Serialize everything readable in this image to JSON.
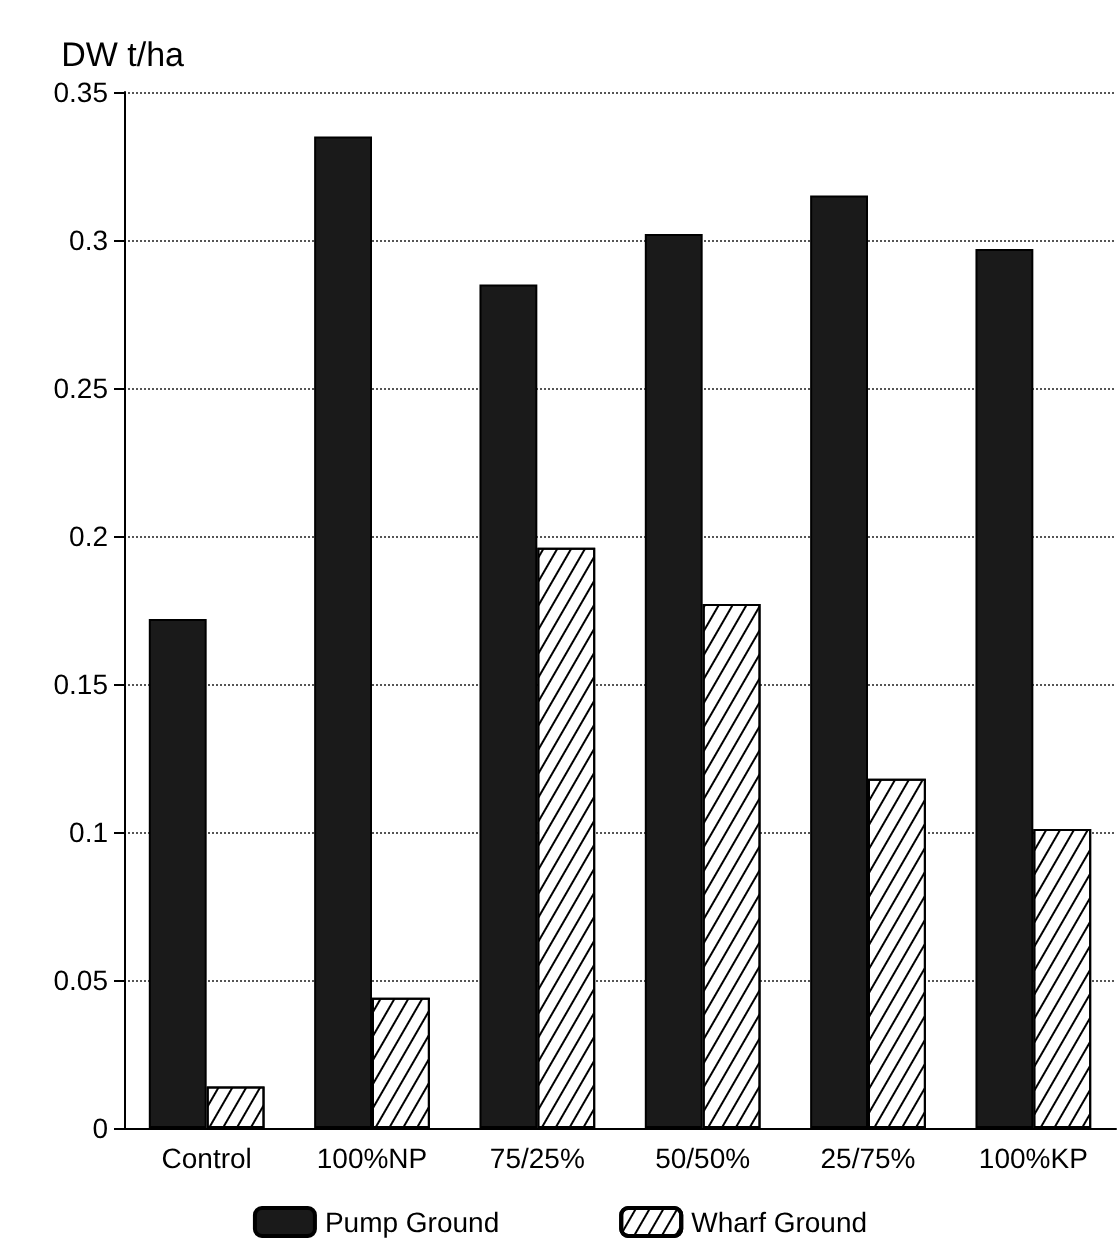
{
  "chart_data": {
    "type": "bar",
    "ylabel": "DW t/ha",
    "categories": [
      "Control",
      "100%NP",
      "75/25%",
      "50/50%",
      "25/75%",
      "100%KP"
    ],
    "series": [
      {
        "name": "Pump Ground",
        "color": "#1a1a1a",
        "values": [
          0.172,
          0.335,
          0.285,
          0.302,
          0.315,
          0.297
        ]
      },
      {
        "name": "Wharf Ground",
        "color": "#ffffff",
        "values": [
          0.014,
          0.044,
          0.196,
          0.177,
          0.118,
          0.101
        ]
      }
    ],
    "ylim": [
      0,
      0.35
    ],
    "yticks": [
      0,
      0.05,
      0.1,
      0.15,
      0.2,
      0.25,
      0.3,
      0.35
    ],
    "grid": "y",
    "legend": "bottom"
  }
}
